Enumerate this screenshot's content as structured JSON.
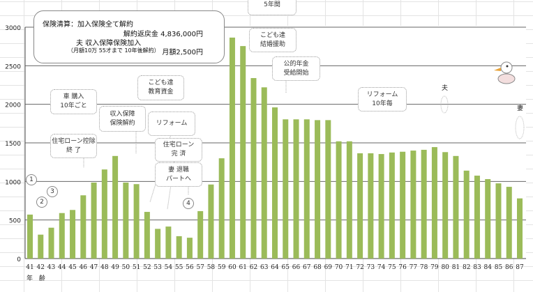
{
  "chart_data": {
    "type": "bar",
    "xlabel": "年 齢",
    "ylabel": "",
    "ylim": [
      0,
      3000
    ],
    "yticks": [
      0,
      500,
      1000,
      1500,
      2000,
      2500,
      3000
    ],
    "grid": true,
    "bar_color": "#9bbb59",
    "categories": [
      "41",
      "42",
      "43",
      "44",
      "45",
      "46",
      "47",
      "48",
      "49",
      "50",
      "51",
      "52",
      "53",
      "54",
      "55",
      "56",
      "57",
      "58",
      "59",
      "60",
      "61",
      "62",
      "63",
      "64",
      "65",
      "66",
      "67",
      "68",
      "69",
      "70",
      "71",
      "72",
      "73",
      "74",
      "75",
      "76",
      "77",
      "78",
      "79",
      "80",
      "81",
      "82",
      "83",
      "84",
      "85",
      "86",
      "87"
    ],
    "values": [
      570,
      310,
      400,
      590,
      630,
      820,
      985,
      1155,
      1330,
      985,
      965,
      605,
      385,
      415,
      290,
      270,
      615,
      960,
      1300,
      2865,
      2755,
      2340,
      2220,
      1960,
      1805,
      1805,
      1805,
      1795,
      1795,
      1520,
      1520,
      1365,
      1365,
      1355,
      1375,
      1385,
      1400,
      1410,
      1445,
      1380,
      1330,
      1140,
      1075,
      1030,
      975,
      930,
      780
    ]
  },
  "annotations": {
    "summary": {
      "line1": "保険清算：加入保険全て解約",
      "line2": "解約返戻金  4,836,000円",
      "line3": "夫  収入保障保険加入",
      "line4a": "（月額10万 55才まで 10年後解約）",
      "line4b": "月額2,500円"
    },
    "car": [
      "車  購入",
      "10年ごと"
    ],
    "education": [
      "こども達",
      "教育資金"
    ],
    "insurance_cancel": [
      "収入保障",
      "保険解約"
    ],
    "reform1": [
      "リフォーム"
    ],
    "loan_deduction": [
      "住宅ローン控除",
      "終  了"
    ],
    "loan_paid": [
      "住宅ローン",
      "完  済"
    ],
    "wife_retire": [
      "妻  退職",
      "パートへ"
    ],
    "top_cut": [
      "5年間"
    ],
    "marriage": [
      "こども達",
      "結婚援助"
    ],
    "pension": [
      "公的年金",
      "受給開始"
    ],
    "reform10": [
      "リフォーム",
      "10年毎"
    ],
    "husband": "夫",
    "wife": "妻",
    "markers": [
      "1",
      "2",
      "3",
      "4"
    ]
  }
}
